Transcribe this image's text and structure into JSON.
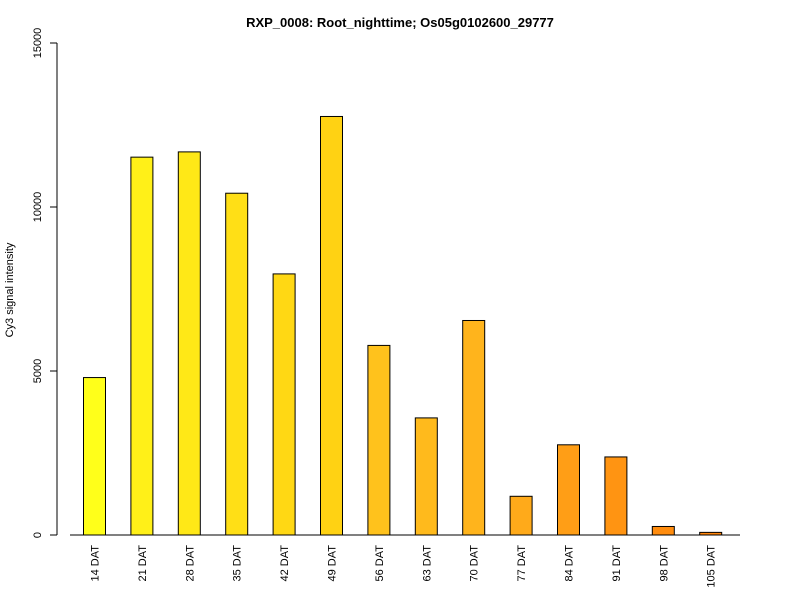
{
  "chart_data": {
    "type": "bar",
    "title": "RXP_0008: Root_nighttime; Os05g0102600_29777",
    "xlabel": "",
    "ylabel": "Cy3 signal intensity",
    "ylim": [
      0,
      15000
    ],
    "yticks": [
      0,
      5000,
      10000,
      15000
    ],
    "categories": [
      "14 DAT",
      "21 DAT",
      "28 DAT",
      "35 DAT",
      "42 DAT",
      "49 DAT",
      "56 DAT",
      "63 DAT",
      "70 DAT",
      "77 DAT",
      "84 DAT",
      "91 DAT",
      "98 DAT",
      "105 DAT"
    ],
    "values": [
      4800,
      11520,
      11680,
      10420,
      7960,
      12760,
      5780,
      3570,
      6540,
      1180,
      2750,
      2380,
      260,
      80
    ],
    "colors": [
      "#FFFF1A",
      "#FFF018",
      "#FFE817",
      "#FFDF16",
      "#FFD814",
      "#FFD213",
      "#FFC21C",
      "#FFBA1C",
      "#FFB41C",
      "#FFAA1A",
      "#FF9E16",
      "#FF9412",
      "#FF8C0E",
      "#FF850A"
    ]
  }
}
